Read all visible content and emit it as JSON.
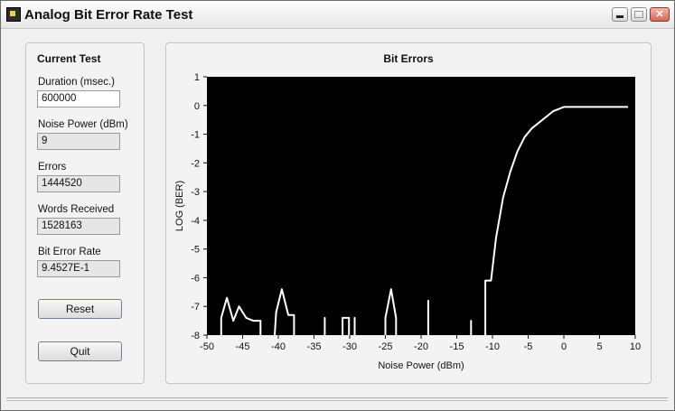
{
  "window": {
    "title": "Analog Bit Error Rate Test"
  },
  "current_test": {
    "heading": "Current Test",
    "fields": [
      {
        "label": "Duration (msec.)",
        "value": "600000",
        "editable": true
      },
      {
        "label": "Noise Power (dBm)",
        "value": "9",
        "editable": false
      },
      {
        "label": "Errors",
        "value": "1444520",
        "editable": false
      },
      {
        "label": "Words Received",
        "value": "1528163",
        "editable": false
      },
      {
        "label": "Bit Error Rate",
        "value": "9.4527E-1",
        "editable": false
      }
    ],
    "reset_label": "Reset",
    "quit_label": "Quit"
  },
  "chart_data": {
    "type": "line",
    "title": "Bit Errors",
    "xlabel": "Noise Power (dBm)",
    "ylabel": "LOG (BER)",
    "xlim": [
      -50,
      10
    ],
    "ylim": [
      -8,
      1
    ],
    "xticks": [
      -50,
      -45,
      -40,
      -35,
      -30,
      -25,
      -20,
      -15,
      -10,
      -5,
      0,
      5,
      10
    ],
    "yticks": [
      1,
      0,
      -1,
      -2,
      -3,
      -4,
      -5,
      -6,
      -7,
      -8
    ],
    "grid": false,
    "background": "#000000",
    "line_color": "#ffffff",
    "series": [
      {
        "segments": [
          [
            [
              -48,
              -8
            ],
            [
              -48,
              -7.4
            ],
            [
              -47.2,
              -6.7
            ],
            [
              -46.3,
              -7.5
            ],
            [
              -45.5,
              -7.0
            ],
            [
              -44.5,
              -7.4
            ],
            [
              -43.5,
              -7.5
            ],
            [
              -42.5,
              -7.5
            ],
            [
              -42.5,
              -8
            ]
          ],
          [
            [
              -40.5,
              -8
            ],
            [
              -40.3,
              -7.2
            ],
            [
              -39.5,
              -6.4
            ],
            [
              -38.6,
              -7.3
            ],
            [
              -37.8,
              -7.3
            ],
            [
              -37.8,
              -8
            ]
          ],
          [
            [
              -33.5,
              -8
            ],
            [
              -33.5,
              -7.4
            ],
            [
              -33.5,
              -8
            ]
          ],
          [
            [
              -31,
              -8
            ],
            [
              -31,
              -7.4
            ],
            [
              -30.1,
              -7.4
            ],
            [
              -30.1,
              -8
            ]
          ],
          [
            [
              -29.3,
              -8
            ],
            [
              -29.3,
              -7.4
            ],
            [
              -29.3,
              -8
            ]
          ],
          [
            [
              -25,
              -8
            ],
            [
              -25,
              -7.4
            ],
            [
              -24.2,
              -6.4
            ],
            [
              -23.5,
              -7.4
            ],
            [
              -23.5,
              -8
            ]
          ],
          [
            [
              -19,
              -8
            ],
            [
              -19,
              -6.8
            ],
            [
              -19,
              -8
            ]
          ],
          [
            [
              -13,
              -8
            ],
            [
              -13,
              -7.5
            ],
            [
              -13,
              -8
            ]
          ],
          [
            [
              -11,
              -8
            ],
            [
              -11,
              -6.1
            ],
            [
              -10.2,
              -6.1
            ],
            [
              -9.5,
              -4.6
            ],
            [
              -8.5,
              -3.2
            ],
            [
              -7.5,
              -2.3
            ],
            [
              -6.5,
              -1.6
            ],
            [
              -5.5,
              -1.1
            ],
            [
              -4.5,
              -0.8
            ],
            [
              -3,
              -0.5
            ],
            [
              -1.5,
              -0.2
            ],
            [
              0,
              -0.05
            ],
            [
              1.5,
              -0.05
            ],
            [
              3,
              -0.05
            ],
            [
              5,
              -0.05
            ],
            [
              7,
              -0.05
            ],
            [
              9,
              -0.05
            ]
          ]
        ]
      }
    ]
  }
}
